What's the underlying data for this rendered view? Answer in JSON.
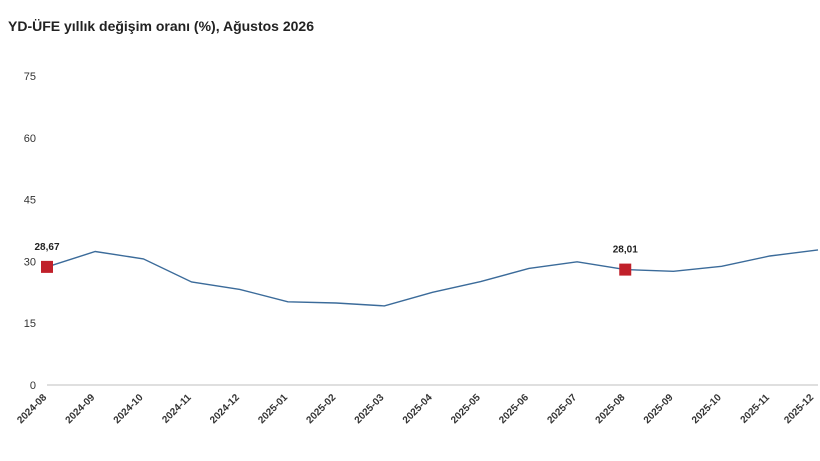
{
  "chart_data": {
    "type": "line",
    "title": "YD-ÜFE yıllık değişim oranı (%), Ağustos 2026",
    "xlabel": "",
    "ylabel": "",
    "categories": [
      "2024-08",
      "2024-09",
      "2024-10",
      "2024-11",
      "2024-12",
      "2025-01",
      "2025-02",
      "2025-03",
      "2025-04",
      "2025-05",
      "2025-06",
      "2025-07",
      "2025-08",
      "2025-09",
      "2025-10",
      "2025-11",
      "2025-12"
    ],
    "series": [
      {
        "values": [
          28.67,
          32.4,
          30.6,
          25.0,
          23.2,
          20.2,
          19.9,
          19.2,
          22.5,
          25.1,
          28.3,
          29.9,
          28.01,
          27.6,
          28.8,
          31.3,
          32.8
        ]
      }
    ],
    "yticks": [
      "0",
      "15",
      "30",
      "45",
      "60",
      "75"
    ],
    "ylim": [
      0,
      75
    ],
    "grid": false,
    "highlights": [
      {
        "index": 0,
        "label": "28,67"
      },
      {
        "index": 12,
        "label": "28,01"
      }
    ],
    "line_color": "#3b6b9a",
    "marker_color": "#c0202a",
    "axis_color": "#bfbfbf"
  }
}
